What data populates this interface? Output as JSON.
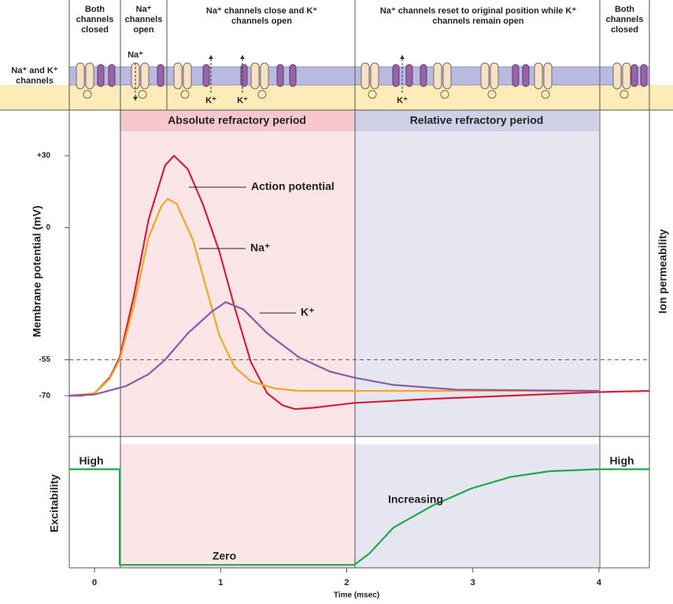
{
  "header": {
    "row_label": "Na⁺ and K⁺ channels",
    "columns": [
      "Both channels closed",
      "Na⁺ channels open",
      "Na⁺ channels close and K⁺ channels open",
      "Na⁺ channels reset to original position while K⁺ channels remain open",
      "Both channels closed"
    ],
    "ion_labels": [
      "Na⁺",
      "K⁺",
      "K⁺",
      "K⁺"
    ]
  },
  "chart_data": [
    {
      "type": "line",
      "y_label": "Membrane potential (mV)",
      "y2_label": "Ion permeability",
      "xlim": [
        -0.2,
        4.4
      ],
      "ylim": [
        -87,
        49
      ],
      "yticks": [
        {
          "value": 30,
          "label": "+30"
        },
        0,
        -55,
        -70
      ],
      "threshold": -55,
      "regions": [
        {
          "label": "Absolute refractory period",
          "start": 0.2,
          "end": 2.06,
          "color": "#fbe5e6",
          "band_color": "#f6c8cd"
        },
        {
          "label": "Relative refractory period",
          "start": 2.06,
          "end": 4.0,
          "color": "#e6e6f1",
          "band_color": "#cfd0e6"
        }
      ],
      "series": [
        {
          "name": "Action potential",
          "color": "#d7203b",
          "x": [
            -0.2,
            -0.1,
            0,
            0.12,
            0.2,
            0.31,
            0.43,
            0.56,
            0.63,
            0.74,
            0.86,
            0.99,
            1.11,
            1.24,
            1.37,
            1.49,
            1.59,
            1.74,
            2.06,
            2.68,
            3.3,
            4.0,
            4.4
          ],
          "values": [
            -70,
            -70,
            -69,
            -62.5,
            -54,
            -29,
            3.6,
            26,
            30,
            24.4,
            9.7,
            -10,
            -33,
            -56,
            -69,
            -74,
            -75.6,
            -75,
            -73,
            -71.3,
            -70,
            -68.5,
            -68
          ]
        },
        {
          "name": "Na⁺",
          "color": "#f5a623",
          "x": [
            -0.2,
            0,
            0.12,
            0.2,
            0.31,
            0.43,
            0.53,
            0.58,
            0.65,
            0.78,
            0.87,
            0.99,
            1.11,
            1.24,
            1.43,
            1.62,
            2.06,
            4.0
          ],
          "values": [
            -70,
            -69,
            -63,
            -55,
            -33,
            -4,
            9,
            12,
            10,
            -5,
            -22,
            -45,
            -58,
            -64,
            -67,
            -68,
            -68,
            -68
          ]
        },
        {
          "name": "K⁺",
          "color": "#8a5aa8",
          "x": [
            -0.2,
            0,
            0.25,
            0.43,
            0.56,
            0.74,
            0.93,
            1.04,
            1.18,
            1.37,
            1.62,
            1.87,
            2.06,
            2.37,
            2.87,
            4.0
          ],
          "values": [
            -70,
            -69.5,
            -66,
            -61,
            -55,
            -44,
            -35,
            -31,
            -34,
            -44,
            -54,
            -60,
            -62.5,
            -65.5,
            -67.5,
            -68
          ]
        }
      ]
    },
    {
      "type": "line",
      "y_label": "Excitability",
      "x_label": "Time (msec)",
      "xlim": [
        -0.2,
        4.4
      ],
      "ylim": [
        -0.03,
        1.26
      ],
      "xticks": [
        0,
        1,
        2,
        3,
        4
      ],
      "annotations": [
        "High",
        "Zero",
        "Increasing",
        "High"
      ],
      "series": [
        {
          "color": "#1da84a",
          "x": [
            -0.2,
            0.2,
            0.2,
            2.06,
            2.18,
            2.37,
            2.68,
            2.99,
            3.3,
            3.61,
            4.0,
            4.4
          ],
          "values": [
            1,
            1,
            0,
            0,
            0.12,
            0.39,
            0.62,
            0.8,
            0.92,
            0.98,
            1,
            1
          ]
        }
      ]
    }
  ]
}
